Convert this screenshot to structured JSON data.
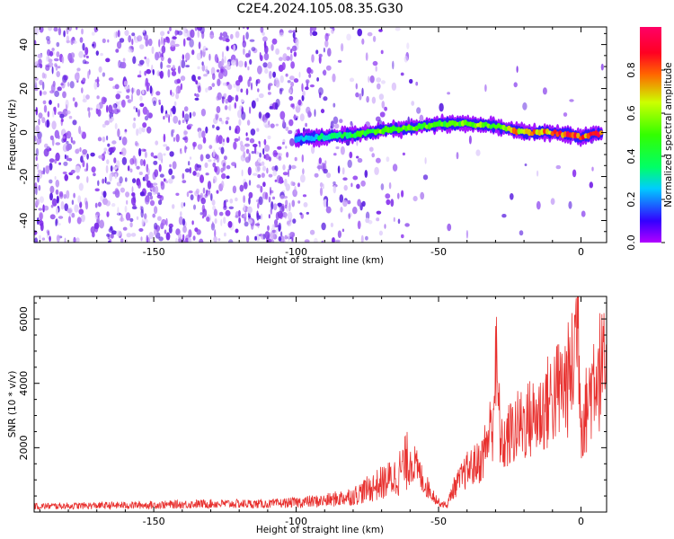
{
  "title": "C2E4.2024.105.08.35.G30",
  "colors": {
    "noise_purple": "#8a2be2",
    "snr_line": "#e8312f",
    "axis": "#000000",
    "background": "#ffffff"
  },
  "chart_data": [
    {
      "type": "heatmap",
      "xlabel": "Height of straight line (km)",
      "ylabel": "Frequency (Hz)",
      "xlim": [
        -192,
        9
      ],
      "ylim": [
        -50,
        48
      ],
      "x_ticks": [
        -150,
        -100,
        -50,
        0
      ],
      "x_tick_labels": [
        "-150",
        "-100",
        "-50",
        "0"
      ],
      "y_ticks": [
        -40,
        -20,
        0,
        20,
        40
      ],
      "y_tick_labels": [
        "-40",
        "-20",
        "0",
        "20",
        "40"
      ],
      "grid": false,
      "colormap": "hsv-like (purple → blue → cyan → green → yellow → red → magenta)",
      "colorbar": {
        "label": "Normalized spectral amplitude",
        "range": [
          0,
          1
        ],
        "ticks": [
          0.0,
          0.2,
          0.4,
          0.6,
          0.8
        ],
        "tick_labels": [
          "0.0",
          "0.2",
          "0.4",
          "0.6",
          "0.8"
        ]
      },
      "signal_track": {
        "description": "narrow high-amplitude band near 0 Hz from about -100 km to +8 km",
        "x": [
          -100,
          -90,
          -80,
          -70,
          -60,
          -50,
          -40,
          -30,
          -20,
          -10,
          0,
          8
        ],
        "freq": [
          -3,
          -2,
          -1,
          1,
          2,
          4,
          4,
          3,
          0,
          0,
          -2,
          0
        ],
        "amplitude": [
          0.25,
          0.35,
          0.45,
          0.55,
          0.55,
          0.5,
          0.6,
          0.6,
          0.8,
          0.85,
          0.9,
          0.95
        ]
      },
      "background_noise": {
        "description": "scattered low-amplitude purple speckle, dense for x < -100 km, sparse thereafter",
        "dense_until": -100,
        "sparse_until": -50,
        "amplitude": 0.05
      }
    },
    {
      "type": "line",
      "xlabel": "Height of straight line (km)",
      "ylabel": "SNR (10 * v/v)",
      "xlim": [
        -192,
        9
      ],
      "ylim": [
        0,
        6700
      ],
      "x_ticks": [
        -150,
        -100,
        -50,
        0
      ],
      "x_tick_labels": [
        "-150",
        "-100",
        "-50",
        "0"
      ],
      "y_ticks": [
        2000,
        4000,
        6000
      ],
      "y_tick_labels": [
        "2000",
        "4000",
        "6000"
      ],
      "grid": false,
      "series": [
        {
          "x": [
            -192,
            -170,
            -150,
            -130,
            -110,
            -100,
            -90,
            -80,
            -70,
            -65,
            -60,
            -58,
            -55,
            -50,
            -47,
            -45,
            -40,
            -35,
            -31,
            -30,
            -28,
            -25,
            -20,
            -15,
            -10,
            -5,
            -3,
            -1,
            0,
            2,
            5,
            9
          ],
          "y": [
            180,
            200,
            220,
            260,
            250,
            300,
            350,
            500,
            900,
            1100,
            1700,
            1400,
            900,
            300,
            200,
            700,
            1300,
            1600,
            2800,
            4700,
            2000,
            2400,
            2800,
            3000,
            3600,
            4000,
            4400,
            6500,
            2800,
            3200,
            4500,
            4300
          ]
        }
      ]
    }
  ]
}
